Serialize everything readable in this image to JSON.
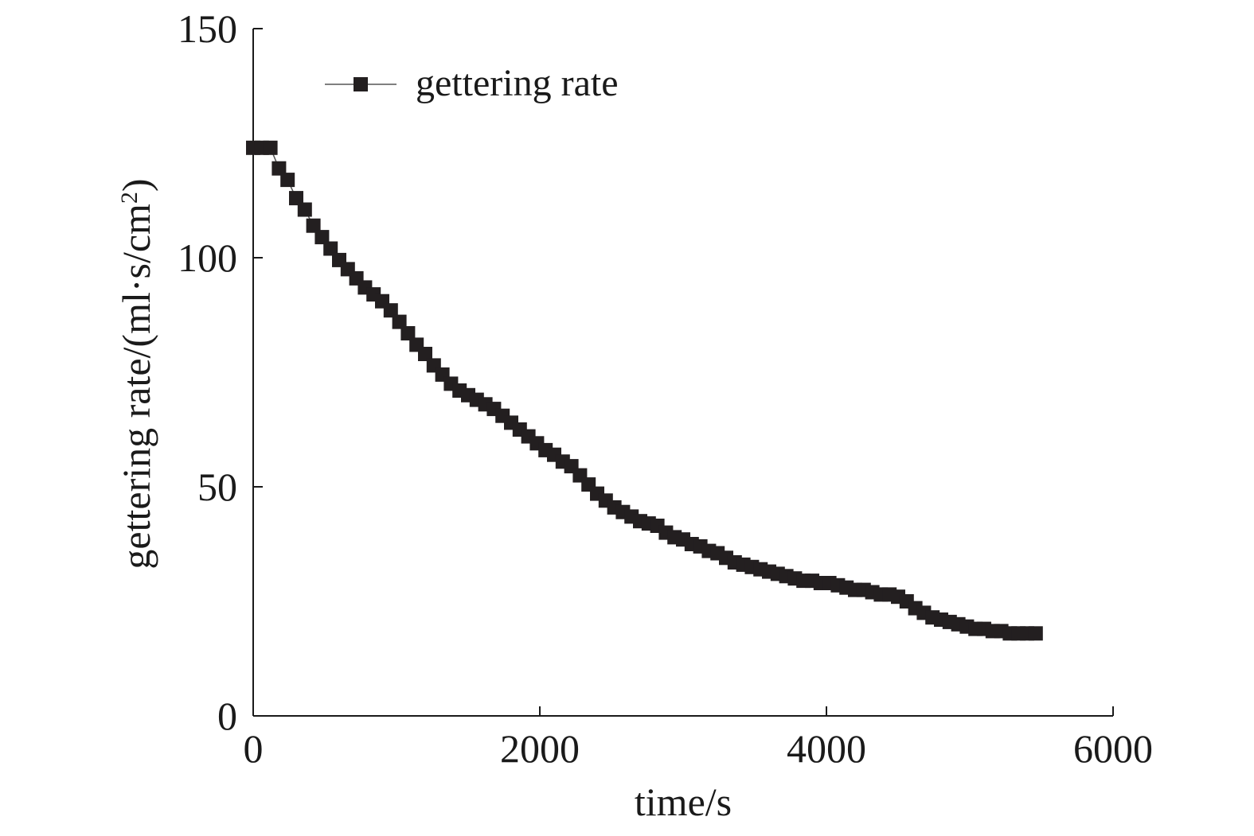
{
  "chart_data": {
    "type": "line",
    "title": "",
    "xlabel": "time/s",
    "ylabel": {
      "base": "gettering rate/(ml·s/cm",
      "sup": "2",
      "close": ")"
    },
    "xlim": [
      0,
      6000
    ],
    "ylim": [
      0,
      150
    ],
    "xticks": [
      0,
      2000,
      4000,
      6000
    ],
    "yticks": [
      0,
      50,
      100,
      150
    ],
    "grid": false,
    "legend_position": "top-left",
    "colors": {
      "series": "#231f20",
      "axis": "#1a1a1a"
    },
    "series": [
      {
        "name": "gettering rate",
        "marker": "square",
        "x": [
          0,
          60,
          120,
          180,
          240,
          300,
          360,
          420,
          480,
          540,
          600,
          660,
          720,
          780,
          840,
          900,
          960,
          1020,
          1080,
          1140,
          1200,
          1260,
          1320,
          1380,
          1440,
          1500,
          1560,
          1620,
          1680,
          1740,
          1800,
          1860,
          1920,
          1980,
          2040,
          2100,
          2160,
          2220,
          2280,
          2340,
          2400,
          2460,
          2520,
          2580,
          2640,
          2700,
          2760,
          2820,
          2880,
          2940,
          3000,
          3060,
          3120,
          3180,
          3240,
          3300,
          3360,
          3420,
          3480,
          3540,
          3600,
          3660,
          3720,
          3780,
          3840,
          3900,
          3960,
          4020,
          4080,
          4140,
          4200,
          4260,
          4320,
          4380,
          4440,
          4500,
          4560,
          4620,
          4680,
          4740,
          4800,
          4860,
          4920,
          4980,
          5040,
          5100,
          5160,
          5220,
          5280,
          5340,
          5400,
          5460
        ],
        "y": [
          124,
          124,
          124,
          119.5,
          117,
          113,
          110.5,
          107,
          104.5,
          102,
          99.5,
          97.5,
          95.5,
          93.5,
          92,
          90.5,
          88.5,
          86,
          83.5,
          81,
          79,
          76.5,
          74.5,
          72.5,
          71,
          70,
          69,
          68,
          67,
          65.5,
          64,
          62.5,
          61,
          59.5,
          58,
          57,
          55.5,
          54.5,
          52.5,
          50.5,
          48.5,
          47,
          45.5,
          44.5,
          43.5,
          42.5,
          42,
          41.5,
          40,
          39,
          38.5,
          37.5,
          37,
          36,
          35.5,
          34.5,
          33.5,
          33,
          32.5,
          32,
          31.5,
          31,
          30.5,
          30,
          29.5,
          29.5,
          29,
          29,
          28.5,
          28,
          27.5,
          27.5,
          27,
          26.5,
          26.5,
          26,
          25,
          23.5,
          22.5,
          21.5,
          21,
          20.5,
          20,
          19.5,
          19,
          19,
          18.5,
          18.5,
          18,
          18,
          18,
          18
        ]
      }
    ]
  }
}
